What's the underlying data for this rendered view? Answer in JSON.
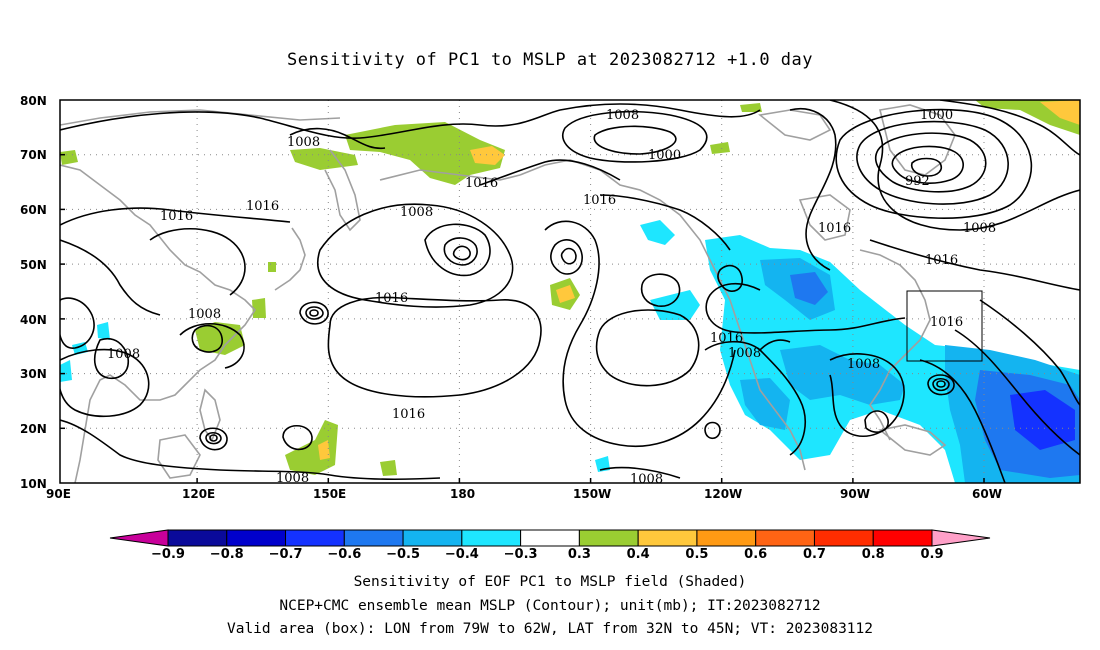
{
  "title": "Sensitivity of PC1 to MSLP at 2023082712 +1.0 day",
  "lat_labels": [
    "80N",
    "70N",
    "60N",
    "50N",
    "40N",
    "30N",
    "20N",
    "10N"
  ],
  "lon_labels": [
    "90E",
    "120E",
    "150E",
    "180",
    "150W",
    "120W",
    "90W",
    "60W"
  ],
  "isobar_labels": [
    "1008",
    "1008",
    "1000",
    "1000",
    "992",
    "1016",
    "1016",
    "1016",
    "1008",
    "1016",
    "1016",
    "1008",
    "1016",
    "1016",
    "1008",
    "1016",
    "1016",
    "1008",
    "1008",
    "1016",
    "1008",
    "1008",
    "1008"
  ],
  "colorbar": {
    "labels": [
      "-0.9",
      "-0.8",
      "-0.7",
      "-0.6",
      "-0.5",
      "-0.4",
      "-0.3",
      "0.3",
      "0.4",
      "0.5",
      "0.6",
      "0.7",
      "0.8",
      "0.9"
    ],
    "colors": [
      "#0a0a9a",
      "#0000cc",
      "#1432ff",
      "#1e78f0",
      "#14b4f0",
      "#1ee6ff",
      "#ffffff",
      "#9acd32",
      "#ffc83c",
      "#ff9a14",
      "#ff6414",
      "#ff2d00",
      "#ff0000"
    ],
    "low_end_color": "#c8009a",
    "high_end_color": "#ffa0c8"
  },
  "shading_colors": {
    "light_cyan": "#1ee6ff",
    "cyan": "#14b4f0",
    "blue": "#1e78f0",
    "deep_blue": "#1432ff",
    "green": "#9acd32",
    "yellow": "#ffc83c",
    "orange": "#ff9a14"
  },
  "captions": [
    "Sensitivity of EOF PC1 to MSLP field (Shaded)",
    "NCEP+CMC ensemble mean MSLP (Contour); unit(mb); IT:2023082712",
    "Valid area (box): LON from 79W to 62W, LAT from 32N to 45N; VT: 2023083112"
  ]
}
